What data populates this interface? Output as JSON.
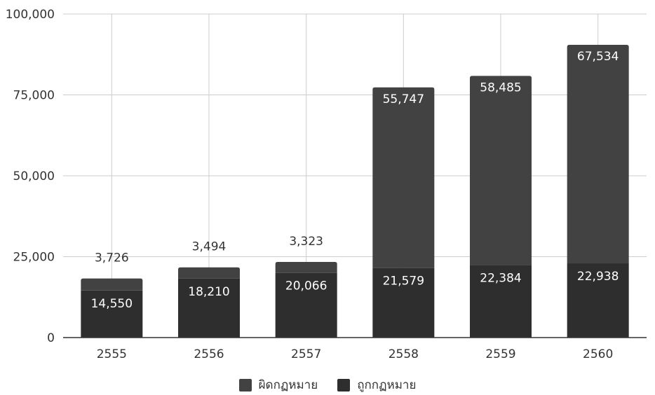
{
  "chart_data": {
    "type": "bar",
    "stacked": true,
    "categories": [
      "2555",
      "2556",
      "2557",
      "2558",
      "2559",
      "2560"
    ],
    "series": [
      {
        "name": "ถูกกฎหมาย",
        "color": "#2e2e2e",
        "values": [
          14550,
          18210,
          20066,
          21579,
          22384,
          22938
        ]
      },
      {
        "name": "ผิดกฏหมาย",
        "color": "#424242",
        "values": [
          3726,
          3494,
          3323,
          55747,
          58485,
          67534
        ]
      }
    ],
    "data_labels": {
      "bottom": [
        "14,550",
        "18,210",
        "20,066",
        "21,579",
        "22,384",
        "22,938"
      ],
      "top": [
        "3,726",
        "3,494",
        "3,323",
        "55,747",
        "58,485",
        "67,534"
      ]
    },
    "yticks": [
      {
        "value": 0,
        "label": "0"
      },
      {
        "value": 25000,
        "label": "25,000"
      },
      {
        "value": 50000,
        "label": "50,000"
      },
      {
        "value": 75000,
        "label": "75,000"
      },
      {
        "value": 100000,
        "label": "100,000"
      }
    ],
    "ylim": [
      0,
      100000
    ],
    "grid": true,
    "legend_position": "bottom"
  },
  "legend": {
    "items": [
      {
        "label": "ผิดกฏหมาย",
        "color": "#424242"
      },
      {
        "label": "ถูกกฏหมาย",
        "color": "#2e2e2e"
      }
    ]
  }
}
